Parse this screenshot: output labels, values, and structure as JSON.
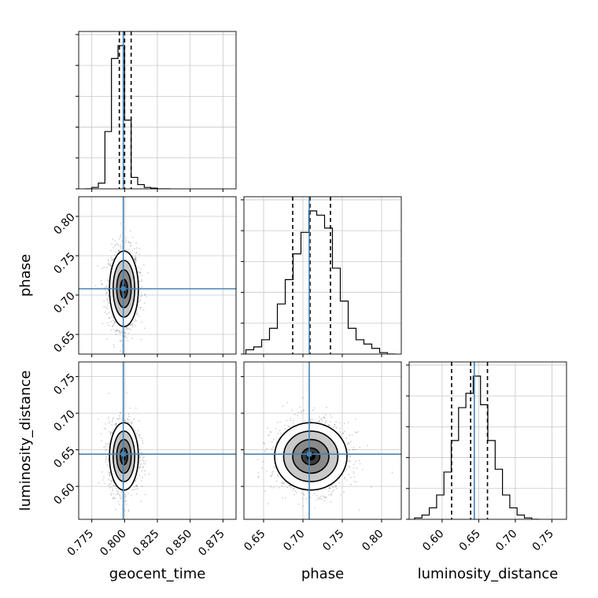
{
  "chart_data": {
    "type": "corner",
    "parameters": [
      {
        "key": "geocent_time",
        "label": "geocent_time",
        "truth": 0.799,
        "range": [
          0.765,
          0.885
        ],
        "ticks": [
          "0.775",
          "0.800",
          "0.825",
          "0.850",
          "0.875"
        ],
        "quantiles": [
          0.796,
          0.8,
          0.805
        ]
      },
      {
        "key": "phase",
        "label": "phase",
        "truth": 0.708,
        "range": [
          0.625,
          0.825
        ],
        "ticks": [
          "0.65",
          "0.70",
          "0.75",
          "0.80"
        ],
        "quantiles": [
          0.687,
          0.709,
          0.735
        ]
      },
      {
        "key": "luminosity_distance",
        "label": "luminosity_distance",
        "truth": 0.644,
        "range": [
          0.555,
          0.77
        ],
        "ticks": [
          "0.60",
          "0.65",
          "0.70",
          "0.75"
        ],
        "quantiles": [
          0.613,
          0.639,
          0.662
        ]
      }
    ],
    "histograms": {
      "geocent_time": {
        "bins": [
          0.7725,
          0.7775,
          0.7825,
          0.7875,
          0.7925,
          0.7975,
          0.8025,
          0.8075,
          0.8125,
          0.8175,
          0.8225,
          0.8275,
          0.8325
        ],
        "counts": [
          0,
          1,
          4,
          40,
          91,
          100,
          48,
          8,
          3,
          1,
          0.5,
          0,
          0
        ]
      },
      "phase": {
        "bins": [
          0.6325,
          0.6425,
          0.6525,
          0.6625,
          0.6725,
          0.6825,
          0.6925,
          0.7025,
          0.7125,
          0.7225,
          0.7325,
          0.7425,
          0.7525,
          0.7625,
          0.7725,
          0.7825,
          0.7925,
          0.8025,
          0.8125
        ],
        "counts": [
          3,
          5,
          10,
          18,
          35,
          52,
          70,
          85,
          100,
          97,
          88,
          60,
          37,
          18,
          10,
          7,
          4,
          1,
          0
        ]
      },
      "luminosity_distance": {
        "bins": [
          0.5675,
          0.5775,
          0.5875,
          0.5975,
          0.6075,
          0.6175,
          0.6275,
          0.6375,
          0.6475,
          0.6575,
          0.6675,
          0.6775,
          0.6875,
          0.6975,
          0.7075,
          0.7175,
          0.7275
        ],
        "counts": [
          1,
          3,
          8,
          17,
          33,
          55,
          78,
          88,
          100,
          80,
          55,
          35,
          17,
          8,
          3,
          1,
          0
        ]
      }
    },
    "pairs": [
      {
        "x": "geocent_time",
        "y": "phase",
        "center": [
          0.7995,
          0.708
        ],
        "sigma": [
          0.0055,
          0.024
        ],
        "contour_levels": [
          0.5,
          1.0,
          1.5,
          2.0
        ]
      },
      {
        "x": "geocent_time",
        "y": "luminosity_distance",
        "center": [
          0.7995,
          0.641
        ],
        "sigma": [
          0.0055,
          0.023
        ],
        "contour_levels": [
          0.5,
          1.0,
          1.5,
          2.0
        ]
      },
      {
        "x": "phase",
        "y": "luminosity_distance",
        "center": [
          0.71,
          0.641
        ],
        "sigma": [
          0.023,
          0.023
        ],
        "contour_levels": [
          0.5,
          1.0,
          1.5,
          2.0
        ]
      }
    ],
    "grid": true,
    "truth_color": "#4682b4",
    "hist_color": "#000000",
    "quantile_style": "dashed"
  }
}
